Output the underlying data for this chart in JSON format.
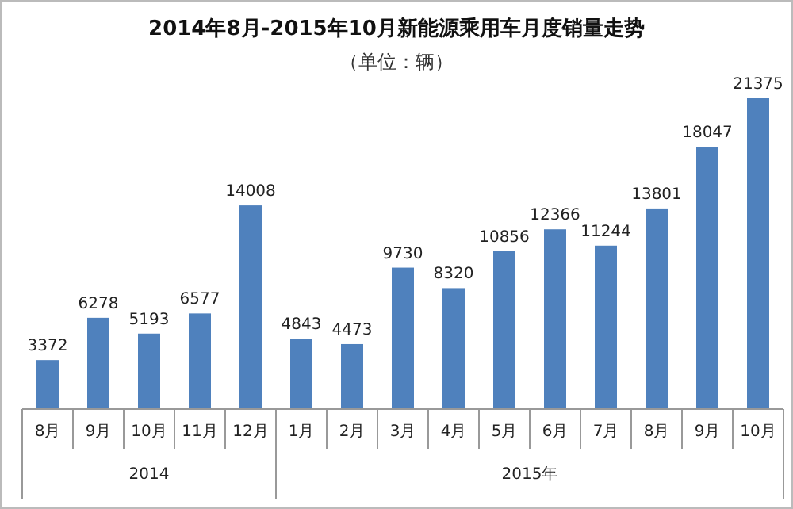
{
  "chart_data": {
    "type": "bar",
    "title": "2014年8月-2015年10月新能源乘用车月度销量走势",
    "subtitle": "（单位：辆）",
    "categories": [
      "8月",
      "9月",
      "10月",
      "11月",
      "12月",
      "1月",
      "2月",
      "3月",
      "4月",
      "5月",
      "6月",
      "7月",
      "8月",
      "9月",
      "10月"
    ],
    "values": [
      3372,
      6278,
      5193,
      6577,
      14008,
      4843,
      4473,
      9730,
      8320,
      10856,
      12366,
      11244,
      13801,
      18047,
      21375
    ],
    "color": "#4f81bd",
    "data_labels": true,
    "annotations": [
      "2014",
      "2015年"
    ]
  }
}
